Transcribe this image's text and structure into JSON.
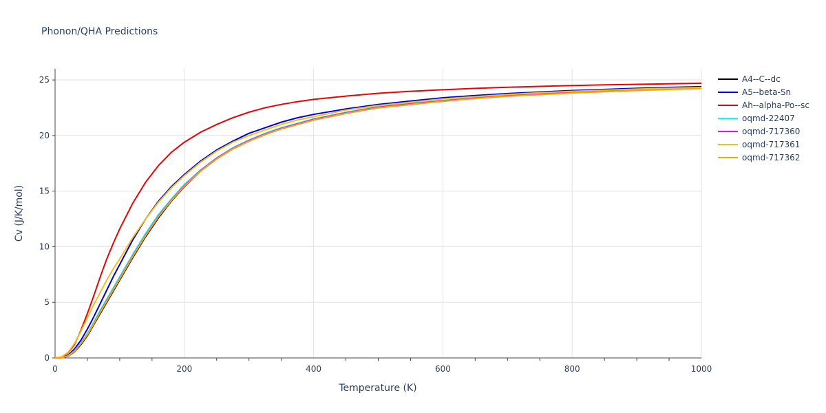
{
  "chart_data": {
    "type": "line",
    "title": "Phonon/QHA Predictions",
    "xlabel": "Temperature (K)",
    "ylabel": "Cv (J/K/mol)",
    "xlim": [
      0,
      1000
    ],
    "ylim": [
      0,
      26
    ],
    "xticks": [
      0,
      200,
      400,
      600,
      800,
      1000
    ],
    "yticks": [
      0,
      5,
      10,
      15,
      20,
      25
    ],
    "grid": true,
    "legend_position": "right",
    "series": [
      {
        "name": "A4--C--dc",
        "color": "#000000",
        "x": [
          0,
          10,
          20,
          30,
          40,
          50,
          60,
          70,
          80,
          90,
          100,
          120,
          140,
          160,
          180,
          200,
          225,
          250,
          275,
          300,
          325,
          350,
          375,
          400,
          450,
          500,
          550,
          600,
          650,
          700,
          750,
          800,
          850,
          900,
          950,
          1000
        ],
        "y": [
          0,
          0.02,
          0.15,
          0.55,
          1.2,
          2.0,
          3.0,
          4.0,
          5.0,
          6.0,
          7.0,
          9.0,
          10.9,
          12.6,
          14.1,
          15.4,
          16.8,
          17.9,
          18.8,
          19.5,
          20.1,
          20.6,
          21.0,
          21.4,
          22.0,
          22.5,
          22.8,
          23.1,
          23.35,
          23.55,
          23.7,
          23.85,
          23.97,
          24.08,
          24.17,
          24.25
        ]
      },
      {
        "name": "A5--beta-Sn",
        "color": "#0000dd",
        "x": [
          0,
          10,
          20,
          30,
          40,
          50,
          60,
          70,
          80,
          90,
          100,
          120,
          140,
          160,
          180,
          200,
          225,
          250,
          275,
          300,
          325,
          350,
          375,
          400,
          450,
          500,
          550,
          600,
          650,
          700,
          750,
          800,
          850,
          900,
          950,
          1000
        ],
        "y": [
          0,
          0.03,
          0.25,
          0.8,
          1.6,
          2.6,
          3.7,
          4.9,
          6.1,
          7.3,
          8.4,
          10.6,
          12.5,
          14.1,
          15.4,
          16.5,
          17.7,
          18.7,
          19.5,
          20.2,
          20.7,
          21.2,
          21.6,
          21.9,
          22.4,
          22.8,
          23.1,
          23.4,
          23.6,
          23.78,
          23.92,
          24.05,
          24.15,
          24.25,
          24.33,
          24.4
        ]
      },
      {
        "name": "Ah--alpha-Po--sc",
        "color": "#ee0000",
        "x": [
          0,
          10,
          20,
          30,
          40,
          50,
          60,
          70,
          80,
          90,
          100,
          120,
          140,
          160,
          180,
          200,
          225,
          250,
          275,
          300,
          325,
          350,
          375,
          400,
          450,
          500,
          550,
          600,
          650,
          700,
          750,
          800,
          850,
          900,
          950,
          1000
        ],
        "y": [
          0,
          0.05,
          0.45,
          1.2,
          2.5,
          4.0,
          5.6,
          7.3,
          8.9,
          10.3,
          11.6,
          13.9,
          15.8,
          17.3,
          18.5,
          19.4,
          20.3,
          21.0,
          21.6,
          22.1,
          22.5,
          22.8,
          23.05,
          23.25,
          23.55,
          23.8,
          23.98,
          24.12,
          24.24,
          24.34,
          24.42,
          24.5,
          24.56,
          24.61,
          24.65,
          24.7
        ]
      },
      {
        "name": "oqmd-22407",
        "color": "#00ffff",
        "x": [
          0,
          10,
          20,
          30,
          40,
          50,
          60,
          70,
          80,
          90,
          100,
          120,
          140,
          160,
          180,
          200,
          225,
          250,
          275,
          300,
          325,
          350,
          375,
          400,
          450,
          500,
          550,
          600,
          650,
          700,
          750,
          800,
          850,
          900,
          950,
          1000
        ],
        "y": [
          0,
          0.02,
          0.2,
          0.65,
          1.35,
          2.2,
          3.2,
          4.3,
          5.3,
          6.3,
          7.3,
          9.3,
          11.2,
          12.9,
          14.3,
          15.6,
          16.9,
          18.0,
          18.9,
          19.6,
          20.2,
          20.7,
          21.1,
          21.5,
          22.1,
          22.6,
          22.9,
          23.15,
          23.4,
          23.6,
          23.75,
          23.9,
          24.0,
          24.1,
          24.2,
          24.28
        ]
      },
      {
        "name": "oqmd-717360",
        "color": "#ff00ff",
        "x": [
          0,
          10,
          20,
          30,
          40,
          50,
          60,
          70,
          80,
          90,
          100,
          120,
          140,
          160,
          180,
          200,
          225,
          250,
          275,
          300,
          325,
          350,
          375,
          400,
          450,
          500,
          550,
          600,
          650,
          700,
          750,
          800,
          850,
          900,
          950,
          1000
        ],
        "y": [
          0,
          0.02,
          0.18,
          0.6,
          1.3,
          2.1,
          3.1,
          4.15,
          5.15,
          6.15,
          7.15,
          9.15,
          11.05,
          12.75,
          14.2,
          15.5,
          16.85,
          17.95,
          18.85,
          19.55,
          20.15,
          20.65,
          21.05,
          21.45,
          22.05,
          22.55,
          22.85,
          23.12,
          23.37,
          23.57,
          23.72,
          23.87,
          23.98,
          24.09,
          24.18,
          24.26
        ]
      },
      {
        "name": "oqmd-717361",
        "color": "#f0c020",
        "x": [
          0,
          10,
          20,
          30,
          40,
          50,
          60,
          70,
          80,
          90,
          100,
          120,
          140,
          160,
          180,
          200,
          225,
          250,
          275,
          300,
          325,
          350,
          375,
          400,
          450,
          500,
          550,
          600,
          650,
          700,
          750,
          800,
          850,
          900,
          950,
          1000
        ],
        "y": [
          0,
          0.1,
          0.5,
          1.3,
          2.4,
          3.6,
          4.8,
          5.9,
          7.0,
          8.0,
          8.9,
          10.8,
          12.5,
          14.0,
          15.3,
          16.4,
          17.6,
          18.6,
          19.4,
          20.0,
          20.5,
          21.0,
          21.4,
          21.7,
          22.3,
          22.7,
          23.0,
          23.3,
          23.5,
          23.7,
          23.85,
          23.98,
          24.08,
          24.18,
          24.26,
          24.33
        ]
      },
      {
        "name": "oqmd-717362",
        "color": "#ffa500",
        "x": [
          0,
          10,
          20,
          30,
          40,
          50,
          60,
          70,
          80,
          90,
          100,
          120,
          140,
          160,
          180,
          200,
          225,
          250,
          275,
          300,
          325,
          350,
          375,
          400,
          450,
          500,
          550,
          600,
          650,
          700,
          750,
          800,
          850,
          900,
          950,
          1000
        ],
        "y": [
          0,
          0.02,
          0.17,
          0.58,
          1.28,
          2.08,
          3.08,
          4.1,
          5.1,
          6.1,
          7.1,
          9.1,
          11.0,
          12.7,
          14.15,
          15.45,
          16.8,
          17.9,
          18.8,
          19.5,
          20.1,
          20.6,
          21.0,
          21.4,
          22.0,
          22.5,
          22.8,
          23.08,
          23.33,
          23.53,
          23.68,
          23.83,
          23.94,
          24.05,
          24.14,
          24.22
        ]
      }
    ]
  }
}
